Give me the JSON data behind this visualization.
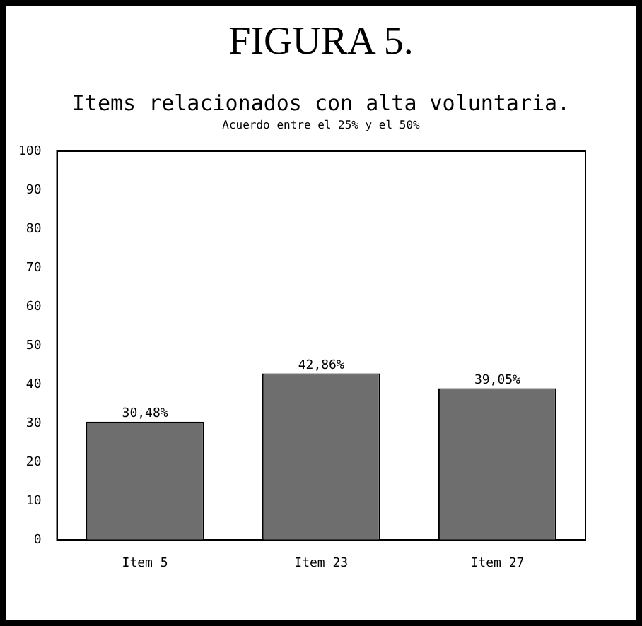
{
  "chart_data": {
    "type": "bar",
    "title": "FIGURA 5.",
    "subtitle": "Items relacionados con alta voluntaria.",
    "annotations": [
      "Acuerdo entre el 25% y el 50%"
    ],
    "categories": [
      "Item 5",
      "Item 23",
      "Item 27"
    ],
    "values": [
      30.48,
      42.86,
      39.05
    ],
    "value_labels": [
      "30,48%",
      "42,86%",
      "39,05%"
    ],
    "color": "#6e6e6e",
    "ylim": [
      0,
      100
    ],
    "yticks": [
      0,
      10,
      20,
      30,
      40,
      50,
      60,
      70,
      80,
      90,
      100
    ],
    "grid": false,
    "legend": false
  }
}
